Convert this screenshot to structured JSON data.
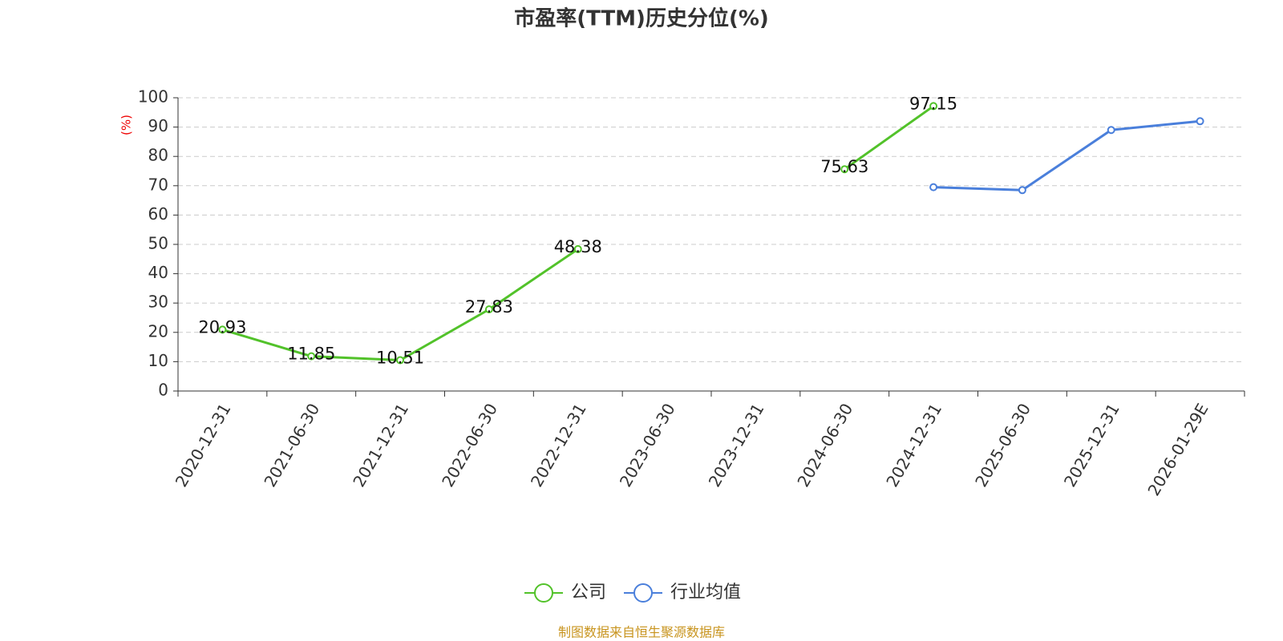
{
  "chart_data": {
    "type": "line",
    "title": "市盈率(TTM)历史分位(%)",
    "y_label": "(%)",
    "categories": [
      "2020-12-31",
      "2021-06-30",
      "2021-12-31",
      "2022-06-30",
      "2022-12-31",
      "2023-06-30",
      "2023-12-31",
      "2024-06-30",
      "2024-12-31",
      "2025-06-30",
      "2025-12-31",
      "2026-01-29E"
    ],
    "series": [
      {
        "name": "公司",
        "color": "#52c22a",
        "values": [
          20.93,
          11.85,
          10.51,
          27.83,
          48.38,
          null,
          null,
          75.63,
          97.15,
          null,
          null,
          null
        ],
        "data_labels": true
      },
      {
        "name": "行业均值",
        "color": "#4a7fdb",
        "values": [
          null,
          null,
          null,
          null,
          null,
          null,
          null,
          null,
          69.5,
          68.5,
          89,
          92
        ],
        "data_labels": false
      }
    ],
    "ylim": [
      0,
      100
    ],
    "yticks": [
      0,
      10,
      20,
      30,
      40,
      50,
      60,
      70,
      80,
      90,
      100
    ],
    "grid": true,
    "legend": "bottom",
    "source": "制图数据来自恒生聚源数据库"
  }
}
